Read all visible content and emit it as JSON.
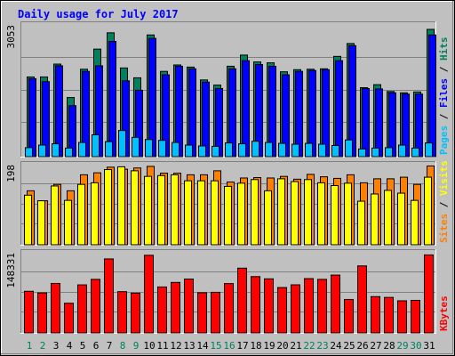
{
  "chart_data": {
    "type": "bar",
    "title": "Daily usage for July 2017",
    "colors": {
      "background": "#c0c0c0",
      "title": "#0000ff",
      "hits": "#00805c",
      "files": "#0000ff",
      "pages": "#00c0ff",
      "visits": "#ffff00",
      "sites": "#ff8000",
      "kbytes": "#ff0000",
      "day_weekday": "#000000",
      "day_weekend": "#00805c"
    },
    "categories": [
      "1",
      "2",
      "3",
      "4",
      "5",
      "6",
      "7",
      "8",
      "9",
      "10",
      "11",
      "12",
      "13",
      "14",
      "15",
      "16",
      "17",
      "18",
      "19",
      "20",
      "21",
      "22",
      "23",
      "24",
      "25",
      "26",
      "27",
      "28",
      "29",
      "30",
      "31"
    ],
    "weekend_days": [
      "1",
      "2",
      "8",
      "9",
      "15",
      "16",
      "22",
      "23",
      "29",
      "30"
    ],
    "panels": [
      {
        "id": "top",
        "max_label": "3053",
        "ymax": 3053,
        "legend": [
          {
            "label": "Pages",
            "color": "#00c0ff"
          },
          {
            "label": " / ",
            "color": "#000000"
          },
          {
            "label": "Files",
            "color": "#0000ff"
          },
          {
            "label": " / ",
            "color": "#000000"
          },
          {
            "label": "Hits",
            "color": "#00805c"
          }
        ],
        "series": [
          {
            "name": "Hits",
            "color": "#00805c",
            "values": [
              1870,
              1870,
              2170,
              1390,
              2050,
              2520,
              2900,
              2080,
              1850,
              2850,
              2000,
              2150,
              2100,
              1800,
              1680,
              2120,
              2380,
              2220,
              2200,
              1990,
              2040,
              2050,
              2060,
              2350,
              2650,
              1620,
              1690,
              1530,
              1500,
              1520,
              2980
            ]
          },
          {
            "name": "Files",
            "color": "#0000ff",
            "values": [
              1830,
              1760,
              2130,
              1200,
              2000,
              2130,
              2700,
              1780,
              1560,
              2770,
              1920,
              2120,
              2060,
              1750,
              1600,
              2060,
              2250,
              2160,
              2120,
              1920,
              2000,
              2020,
              2040,
              2250,
              2600,
              1600,
              1590,
              1500,
              1470,
              1470,
              2850
            ]
          },
          {
            "name": "Pages",
            "color": "#00c0ff",
            "values": [
              220,
              280,
              310,
              210,
              340,
              520,
              360,
              620,
              460,
              410,
              390,
              340,
              280,
              260,
              250,
              330,
              310,
              370,
              340,
              320,
              300,
              320,
              300,
              270,
              400,
              190,
              210,
              220,
              280,
              210,
              330
            ]
          }
        ]
      },
      {
        "id": "mid",
        "max_label": "198",
        "ymax": 198,
        "legend": [
          {
            "label": "Sites",
            "color": "#ff8000"
          },
          {
            "label": " / ",
            "color": "#000000"
          },
          {
            "label": "Visits",
            "color": "#ffff00"
          }
        ],
        "series": [
          {
            "name": "Sites",
            "color": "#ff8000",
            "values": [
              136,
              111,
              152,
              136,
              176,
              181,
              195,
              190,
              193,
              197,
              180,
              180,
              176,
              176,
              186,
              158,
              168,
              169,
              168,
              172,
              165,
              177,
              171,
              167,
              176,
              156,
              166,
              166,
              170,
              152,
              198
            ]
          },
          {
            "name": "Visits",
            "color": "#ffff00",
            "values": [
              125,
              111,
              148,
              112,
              152,
              156,
              189,
              196,
              186,
              172,
              174,
              176,
              161,
              161,
              161,
              147,
              155,
              164,
              136,
              166,
              159,
              164,
              156,
              149,
              155,
              110,
              128,
              137,
              130,
              112,
              170
            ]
          }
        ]
      },
      {
        "id": "bot",
        "max_label": "148331",
        "ymax": 148331,
        "legend": [
          {
            "label": "KBytes",
            "color": "#ff0000"
          }
        ],
        "series": [
          {
            "name": "KBytes",
            "color": "#ff0000",
            "values": [
              78700,
              75700,
              93400,
              56300,
              90700,
              101000,
              139300,
              78000,
              75300,
              146100,
              86800,
              95300,
              101600,
              76000,
              76800,
              93100,
              122000,
              106200,
              102000,
              85700,
              90800,
              102400,
              101000,
              109000,
              63400,
              126200,
              68700,
              67200,
              60900,
              61700,
              146800
            ]
          }
        ]
      }
    ]
  }
}
